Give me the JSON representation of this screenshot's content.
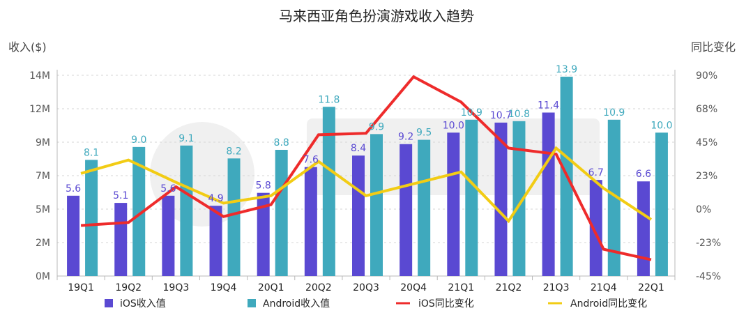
{
  "chart_data": {
    "type": "bar",
    "title": "马来西亚角色扮演游戏收入趋势",
    "ylabel": "收入($)",
    "y2label": "同比变化",
    "categories": [
      "19Q1",
      "19Q2",
      "19Q3",
      "19Q4",
      "20Q1",
      "20Q2",
      "20Q3",
      "20Q4",
      "21Q1",
      "21Q2",
      "21Q3",
      "21Q4",
      "22Q1"
    ],
    "ylim": [
      0,
      14
    ],
    "y_ticks": [
      "0M",
      "2M",
      "5M",
      "7M",
      "9M",
      "12M",
      "14M"
    ],
    "y2lim": [
      -45,
      90
    ],
    "y2_ticks": [
      "-45%",
      "-23%",
      "0%",
      "23%",
      "45%",
      "68%",
      "90%"
    ],
    "grid": true,
    "legend": "bottom",
    "series": [
      {
        "name": "iOS收入值",
        "kind": "bar",
        "color": "#5a49d2",
        "values": [
          5.6,
          5.1,
          5.6,
          4.9,
          5.8,
          7.6,
          8.4,
          9.2,
          10.0,
          10.7,
          11.4,
          6.7,
          6.6
        ],
        "labels": [
          "5.6",
          "5.1",
          "5.6",
          "4.9",
          "5.8",
          "7.6",
          "8.4",
          "9.2",
          "10.0",
          "10.7",
          "11.4",
          "6.7",
          "6.6"
        ]
      },
      {
        "name": "Android收入值",
        "kind": "bar",
        "color": "#3fa9bd",
        "values": [
          8.1,
          9.0,
          9.1,
          8.2,
          8.8,
          11.8,
          9.9,
          9.5,
          10.9,
          10.8,
          13.9,
          10.9,
          10.0
        ],
        "labels": [
          "8.1",
          "9.0",
          "9.1",
          "8.2",
          "8.8",
          "11.8",
          "9.9",
          "9.5",
          "10.9",
          "10.8",
          "13.9",
          "10.9",
          "10.0"
        ]
      },
      {
        "name": "iOS同比变化",
        "kind": "line",
        "axis": "y2",
        "color": "#ee2b2b",
        "values": [
          -11,
          -9,
          15,
          -5,
          3,
          50,
          51,
          89,
          72,
          41,
          37,
          -27,
          -34
        ]
      },
      {
        "name": "Android同比变化",
        "kind": "line",
        "axis": "y2",
        "color": "#f2cc14",
        "values": [
          24,
          33,
          18,
          4,
          9,
          32,
          9,
          17,
          25,
          -8,
          41,
          14,
          -7
        ]
      }
    ]
  }
}
